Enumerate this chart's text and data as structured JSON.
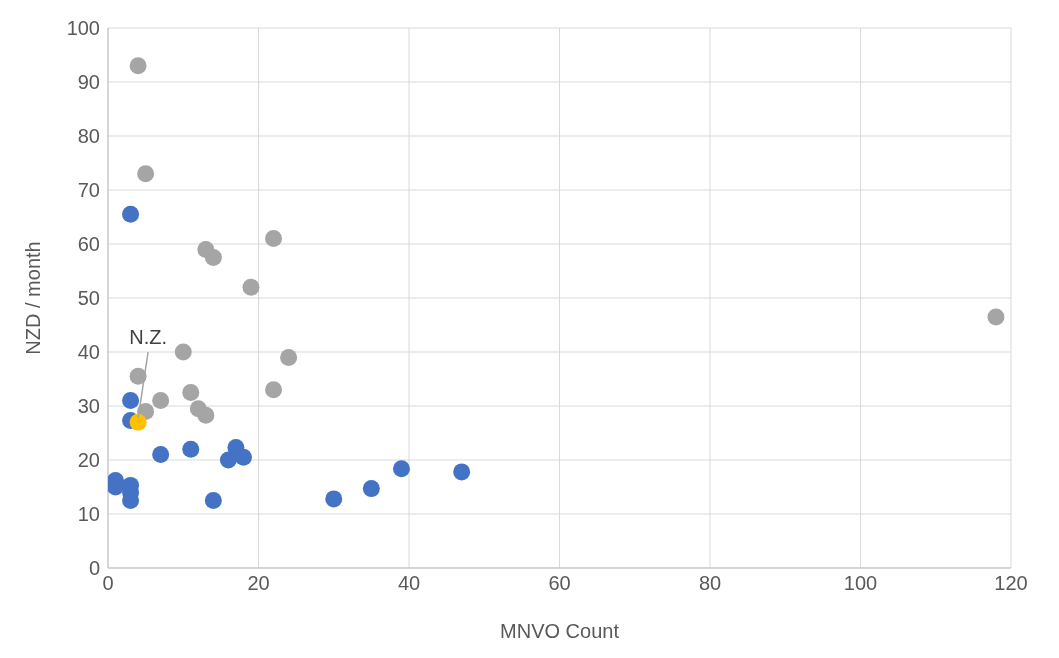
{
  "chart_data": {
    "type": "scatter",
    "xlabel": "MNVO Count",
    "ylabel": "NZD / month",
    "xlim": [
      0,
      120
    ],
    "xticks": [
      0,
      20,
      40,
      60,
      80,
      100,
      120
    ],
    "ylim": [
      0,
      100
    ],
    "yticks": [
      0,
      10,
      20,
      30,
      40,
      50,
      60,
      70,
      80,
      90,
      100
    ],
    "grid": true,
    "marker": "circle",
    "series": [
      {
        "color": "#a5a5a5",
        "x": [
          4,
          5,
          13,
          14,
          22,
          19,
          10,
          24,
          4,
          22,
          11,
          7,
          12,
          13,
          5,
          118
        ],
        "values": [
          93,
          73,
          59,
          57.5,
          61,
          52,
          40,
          39,
          35.5,
          33,
          32.5,
          31,
          29.5,
          28.3,
          29,
          46.5
        ]
      },
      {
        "color": "#4472c4",
        "x": [
          3,
          3,
          3,
          7,
          11,
          17,
          16,
          18,
          1,
          1,
          3,
          3,
          3,
          14,
          30,
          35,
          39,
          47
        ],
        "values": [
          65.5,
          31,
          27.3,
          21,
          22,
          22.3,
          20,
          20.5,
          16.2,
          15,
          15.3,
          14,
          12.5,
          12.5,
          12.8,
          14.7,
          18.4,
          17.8
        ]
      },
      {
        "color": "#ffc000",
        "x": [
          4
        ],
        "values": [
          27
        ]
      }
    ],
    "annotations": [
      {
        "text": "N.Z.",
        "x": 4,
        "y": 27
      }
    ]
  }
}
